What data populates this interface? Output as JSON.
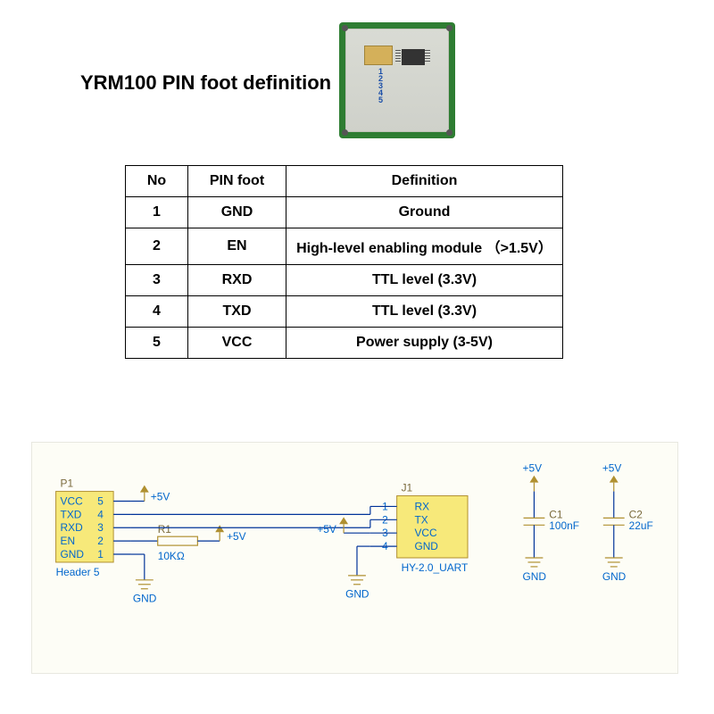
{
  "title": "YRM100 PIN foot definition",
  "module": {
    "pcb_color": "#2e7d32",
    "body_color": "#d9dbd4",
    "pins": [
      "1",
      "2",
      "3",
      "4",
      "5"
    ]
  },
  "table": {
    "columns": [
      "No",
      "PIN foot",
      "Definition"
    ],
    "rows": [
      [
        "1",
        "GND",
        "Ground"
      ],
      [
        "2",
        "EN",
        "High-level enabling module （>1.5V）"
      ],
      [
        "3",
        "RXD",
        "TTL level (3.3V)"
      ],
      [
        "4",
        "TXD",
        "TTL level (3.3V)"
      ],
      [
        "5",
        "VCC",
        "Power supply (3-5V)"
      ]
    ]
  },
  "schematic": {
    "background": "#fdfdf6",
    "wire_color": "#003399",
    "component_fill": "#f7e97a",
    "component_stroke": "#b09030",
    "text_color": "#0066cc",
    "label_color": "#7a6a3c",
    "P1": {
      "ref": "P1",
      "name": "Header 5",
      "pins": [
        "VCC",
        "TXD",
        "RXD",
        "EN",
        "GND"
      ],
      "nums": [
        "5",
        "4",
        "3",
        "2",
        "1"
      ]
    },
    "J1": {
      "ref": "J1",
      "name": "HY-2.0_UART",
      "pins": [
        "RX",
        "TX",
        "VCC",
        "GND"
      ],
      "nums": [
        "1",
        "2",
        "3",
        "4"
      ]
    },
    "R1": {
      "ref": "R1",
      "value": "10KΩ"
    },
    "C1": {
      "ref": "C1",
      "value": "100nF"
    },
    "C2": {
      "ref": "C2",
      "value": "22uF"
    },
    "rails": {
      "p5v": "+5V",
      "gnd": "GND"
    }
  }
}
